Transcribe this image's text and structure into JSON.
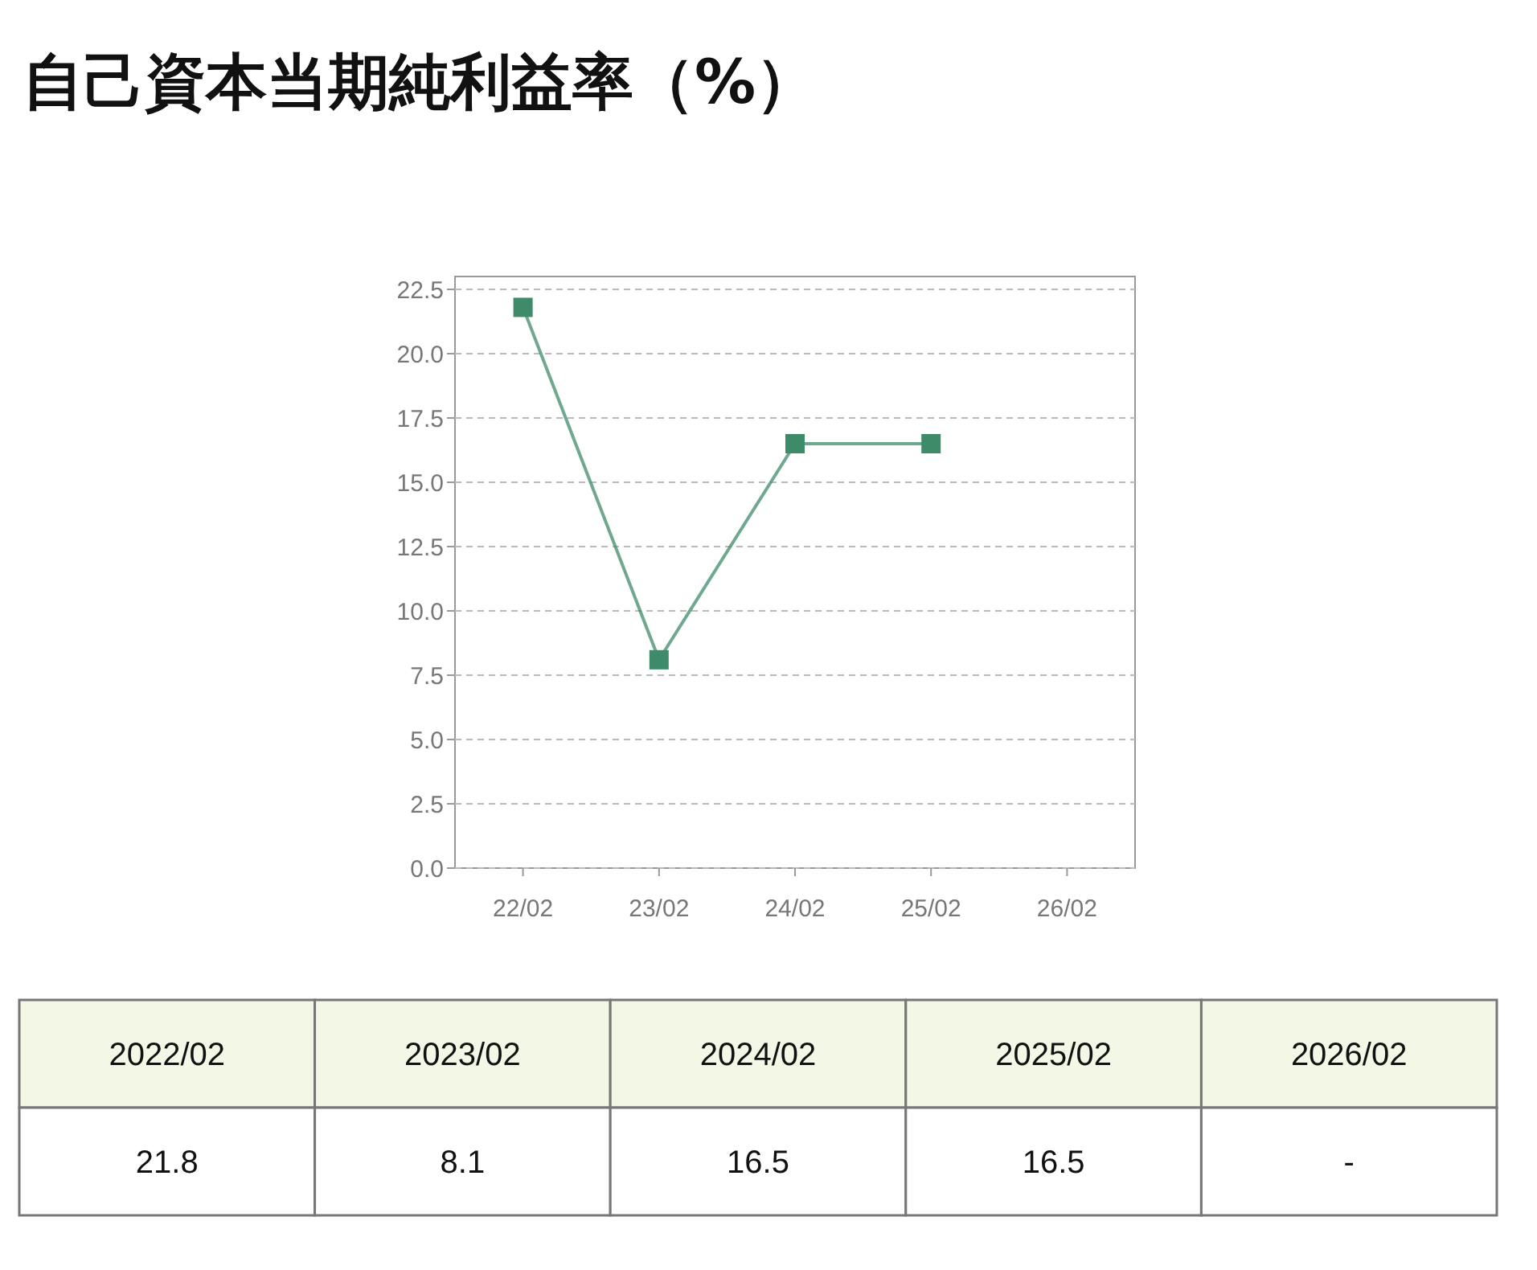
{
  "chart_data": {
    "type": "line",
    "title": "自己資本当期純利益率（%）",
    "categories": [
      "22/02",
      "23/02",
      "24/02",
      "25/02",
      "26/02"
    ],
    "series": [
      {
        "color": "#3d8b68",
        "values": [
          21.8,
          8.1,
          16.5,
          16.5,
          null
        ]
      }
    ],
    "value_labels": [
      "21.8",
      "8.1",
      "16.5",
      "16.5",
      "-"
    ],
    "annotations": [
      "2022/02",
      "2023/02",
      "2024/02",
      "2025/02",
      "2026/02"
    ],
    "ylim": [
      0,
      23
    ],
    "yticks": [
      {
        "value": 0,
        "label": "0.0"
      },
      {
        "value": 2.5,
        "label": "2.5"
      },
      {
        "value": 5,
        "label": "5.0"
      },
      {
        "value": 7.5,
        "label": "7.5"
      },
      {
        "value": 10,
        "label": "10.0"
      },
      {
        "value": 12.5,
        "label": "12.5"
      },
      {
        "value": 15,
        "label": "15.0"
      },
      {
        "value": 17.5,
        "label": "17.5"
      },
      {
        "value": 20,
        "label": "20.0"
      },
      {
        "value": 22.5,
        "label": "22.5"
      }
    ],
    "grid": "y",
    "marker": "square",
    "line_style": "solid"
  }
}
